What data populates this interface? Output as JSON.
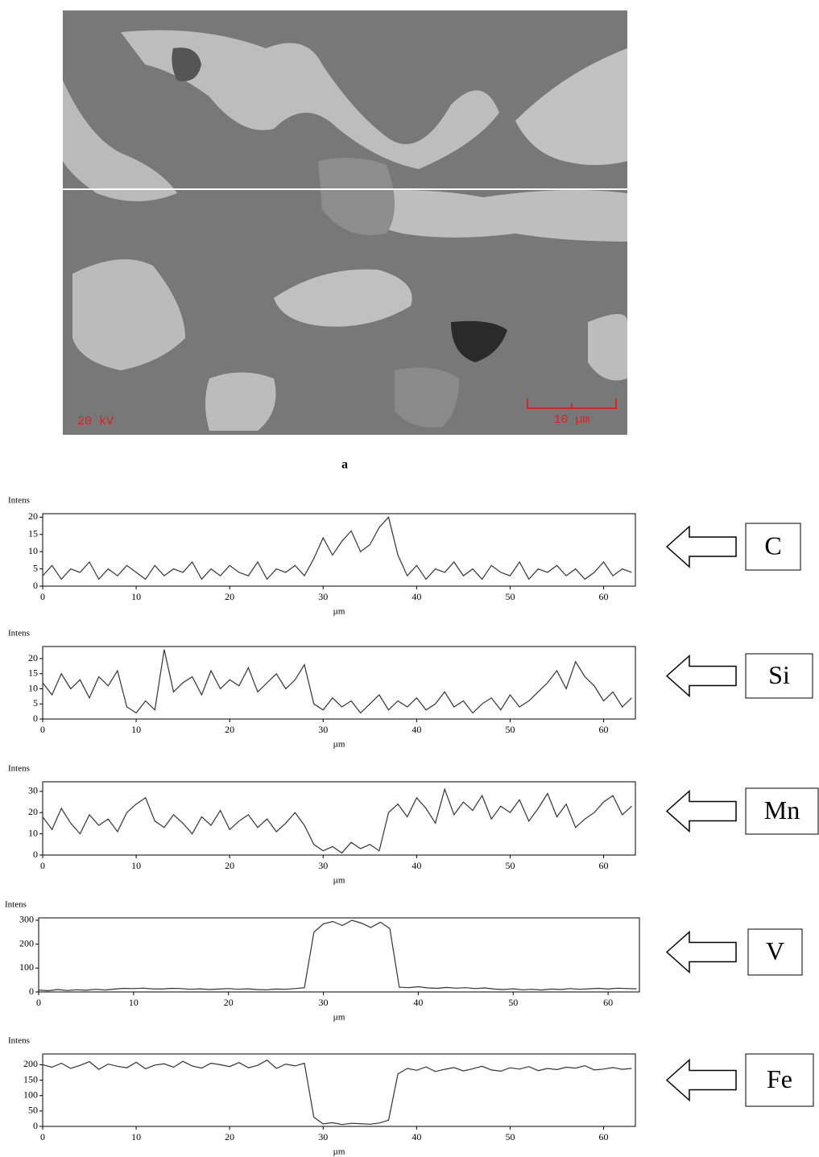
{
  "micrograph": {
    "voltage_label": "20 kV",
    "scale_label": "10 µm"
  },
  "caption": "a",
  "chart_data": [
    {
      "type": "line",
      "y_label": "Intens",
      "x_label": "µm",
      "annotation": "C",
      "xlim": [
        0,
        63.4
      ],
      "xticks": [
        0,
        10,
        20,
        30,
        40,
        50,
        60
      ],
      "ylim": [
        0,
        21
      ],
      "yticks": [
        0,
        5,
        10,
        15,
        20
      ],
      "series": [
        {
          "color": "#333333",
          "x": [
            0,
            1,
            2,
            3,
            4,
            5,
            6,
            7,
            8,
            9,
            10,
            11,
            12,
            13,
            14,
            15,
            16,
            17,
            18,
            19,
            20,
            21,
            22,
            23,
            24,
            25,
            26,
            27,
            28,
            29,
            30,
            31,
            32,
            33,
            34,
            35,
            36,
            37,
            38,
            39,
            40,
            41,
            42,
            43,
            44,
            45,
            46,
            47,
            48,
            49,
            50,
            51,
            52,
            53,
            54,
            55,
            56,
            57,
            58,
            59,
            60,
            61,
            62,
            63
          ],
          "values": [
            3,
            6,
            2,
            5,
            4,
            7,
            2,
            5,
            3,
            6,
            4,
            2,
            6,
            3,
            5,
            4,
            7,
            2,
            5,
            3,
            6,
            4,
            3,
            7,
            2,
            5,
            4,
            6,
            3,
            8,
            14,
            9,
            13,
            16,
            10,
            12,
            17,
            20,
            9,
            3,
            6,
            2,
            5,
            4,
            7,
            3,
            5,
            2,
            6,
            4,
            3,
            7,
            2,
            5,
            4,
            6,
            3,
            5,
            2,
            4,
            7,
            3,
            5,
            4
          ]
        }
      ]
    },
    {
      "type": "line",
      "y_label": "Intens",
      "x_label": "µm",
      "annotation": "Si",
      "xlim": [
        0,
        63.4
      ],
      "xticks": [
        0,
        10,
        20,
        30,
        40,
        50,
        60
      ],
      "ylim": [
        0,
        24
      ],
      "yticks": [
        0,
        5,
        10,
        15,
        20
      ],
      "series": [
        {
          "color": "#333333",
          "x": [
            0,
            1,
            2,
            3,
            4,
            5,
            6,
            7,
            8,
            9,
            10,
            11,
            12,
            13,
            14,
            15,
            16,
            17,
            18,
            19,
            20,
            21,
            22,
            23,
            24,
            25,
            26,
            27,
            28,
            29,
            30,
            31,
            32,
            33,
            34,
            35,
            36,
            37,
            38,
            39,
            40,
            41,
            42,
            43,
            44,
            45,
            46,
            47,
            48,
            49,
            50,
            51,
            52,
            53,
            54,
            55,
            56,
            57,
            58,
            59,
            60,
            61,
            62,
            63
          ],
          "values": [
            12,
            8,
            15,
            10,
            13,
            7,
            14,
            11,
            16,
            4,
            2,
            6,
            3,
            23,
            9,
            12,
            14,
            8,
            16,
            10,
            13,
            11,
            17,
            9,
            12,
            15,
            10,
            13,
            18,
            5,
            3,
            7,
            4,
            6,
            2,
            5,
            8,
            3,
            6,
            4,
            7,
            3,
            5,
            9,
            4,
            6,
            2,
            5,
            7,
            3,
            8,
            4,
            6,
            9,
            12,
            16,
            10,
            19,
            14,
            11,
            6,
            9,
            4,
            7
          ]
        }
      ]
    },
    {
      "type": "line",
      "y_label": "Intens",
      "x_label": "µm",
      "annotation": "Mn",
      "xlim": [
        0,
        63.4
      ],
      "xticks": [
        0,
        10,
        20,
        30,
        40,
        50,
        60
      ],
      "ylim": [
        0,
        34.5
      ],
      "yticks": [
        0,
        10,
        20,
        30
      ],
      "series": [
        {
          "color": "#333333",
          "x": [
            0,
            1,
            2,
            3,
            4,
            5,
            6,
            7,
            8,
            9,
            10,
            11,
            12,
            13,
            14,
            15,
            16,
            17,
            18,
            19,
            20,
            21,
            22,
            23,
            24,
            25,
            26,
            27,
            28,
            29,
            30,
            31,
            32,
            33,
            34,
            35,
            36,
            37,
            38,
            39,
            40,
            41,
            42,
            43,
            44,
            45,
            46,
            47,
            48,
            49,
            50,
            51,
            52,
            53,
            54,
            55,
            56,
            57,
            58,
            59,
            60,
            61,
            62,
            63
          ],
          "values": [
            18,
            12,
            22,
            15,
            10,
            19,
            14,
            17,
            11,
            20,
            24,
            27,
            16,
            13,
            19,
            15,
            10,
            18,
            14,
            21,
            12,
            16,
            19,
            13,
            17,
            11,
            15,
            20,
            14,
            5,
            2,
            4,
            1,
            6,
            3,
            5,
            2,
            20,
            24,
            18,
            27,
            22,
            15,
            31,
            19,
            25,
            21,
            28,
            17,
            23,
            20,
            26,
            16,
            22,
            29,
            18,
            24,
            13,
            17,
            20,
            25,
            28,
            19,
            23
          ]
        }
      ]
    },
    {
      "type": "line",
      "y_label": "Intens",
      "x_label": "µm",
      "annotation": "V",
      "xlim": [
        0,
        63.3
      ],
      "xticks": [
        0,
        10,
        20,
        30,
        40,
        50,
        60
      ],
      "ylim": [
        0,
        310
      ],
      "yticks": [
        0,
        100,
        200,
        300
      ],
      "series": [
        {
          "color": "#333333",
          "x": [
            0,
            1,
            2,
            3,
            4,
            5,
            6,
            7,
            8,
            9,
            10,
            11,
            12,
            13,
            14,
            15,
            16,
            17,
            18,
            19,
            20,
            21,
            22,
            23,
            24,
            25,
            26,
            27,
            28,
            29,
            30,
            31,
            32,
            33,
            34,
            35,
            36,
            37,
            38,
            39,
            40,
            41,
            42,
            43,
            44,
            45,
            46,
            47,
            48,
            49,
            50,
            51,
            52,
            53,
            54,
            55,
            56,
            57,
            58,
            59,
            60,
            61,
            62,
            63
          ],
          "values": [
            8,
            5,
            10,
            6,
            9,
            7,
            11,
            8,
            12,
            15,
            14,
            16,
            13,
            12,
            15,
            14,
            11,
            13,
            10,
            12,
            14,
            11,
            13,
            10,
            9,
            12,
            11,
            14,
            18,
            250,
            285,
            295,
            278,
            300,
            288,
            270,
            292,
            265,
            20,
            18,
            22,
            17,
            15,
            19,
            16,
            18,
            14,
            17,
            12,
            10,
            13,
            9,
            11,
            8,
            12,
            10,
            14,
            11,
            13,
            15,
            12,
            16,
            14,
            13
          ]
        }
      ]
    },
    {
      "type": "line",
      "y_label": "Intens",
      "x_label": "µm",
      "annotation": "Fe",
      "xlim": [
        0,
        63.4
      ],
      "xticks": [
        0,
        10,
        20,
        30,
        40,
        50,
        60
      ],
      "ylim": [
        0,
        235
      ],
      "yticks": [
        0,
        50,
        100,
        150,
        200
      ],
      "series": [
        {
          "color": "#333333",
          "x": [
            0,
            1,
            2,
            3,
            4,
            5,
            6,
            7,
            8,
            9,
            10,
            11,
            12,
            13,
            14,
            15,
            16,
            17,
            18,
            19,
            20,
            21,
            22,
            23,
            24,
            25,
            26,
            27,
            28,
            29,
            30,
            31,
            32,
            33,
            34,
            35,
            36,
            37,
            38,
            39,
            40,
            41,
            42,
            43,
            44,
            45,
            46,
            47,
            48,
            49,
            50,
            51,
            52,
            53,
            54,
            55,
            56,
            57,
            58,
            59,
            60,
            61,
            62,
            63
          ],
          "values": [
            200,
            192,
            205,
            188,
            198,
            210,
            185,
            202,
            195,
            190,
            208,
            187,
            199,
            203,
            192,
            211,
            196,
            189,
            205,
            200,
            194,
            207,
            190,
            198,
            215,
            188,
            202,
            196,
            205,
            30,
            8,
            12,
            6,
            10,
            9,
            7,
            11,
            20,
            170,
            188,
            182,
            193,
            178,
            185,
            191,
            180,
            187,
            195,
            183,
            179,
            190,
            186,
            194,
            181,
            188,
            184,
            192,
            189,
            197,
            183,
            186,
            191,
            185,
            188
          ]
        }
      ]
    }
  ]
}
